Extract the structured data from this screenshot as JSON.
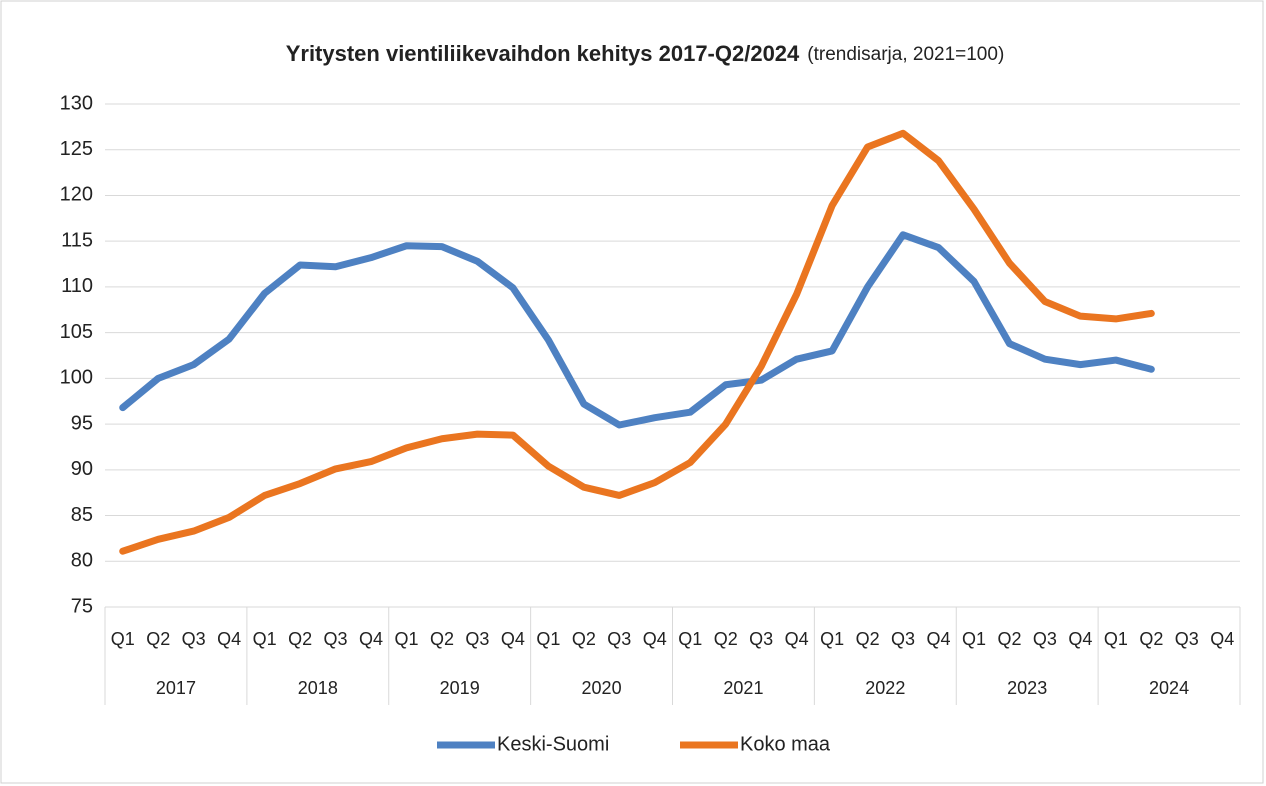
{
  "chart_data": {
    "type": "line",
    "title": "Yritysten vientiliikevaihdon kehitys 2017-Q2/2024",
    "subtitle": "(trendisarja, 2021=100)",
    "categories": [
      "Q1",
      "Q2",
      "Q3",
      "Q4",
      "Q1",
      "Q2",
      "Q3",
      "Q4",
      "Q1",
      "Q2",
      "Q3",
      "Q4",
      "Q1",
      "Q2",
      "Q3",
      "Q4",
      "Q1",
      "Q2",
      "Q3",
      "Q4",
      "Q1",
      "Q2",
      "Q3",
      "Q4",
      "Q1",
      "Q2",
      "Q3",
      "Q4",
      "Q1",
      "Q2",
      "Q3",
      "Q4"
    ],
    "groups": [
      "2017",
      "2018",
      "2019",
      "2020",
      "2021",
      "2022",
      "2023",
      "2024"
    ],
    "series": [
      {
        "name": "Keski-Suomi",
        "color": "#4e81c2",
        "values": [
          96.8,
          100.0,
          101.5,
          104.3,
          109.3,
          112.4,
          112.2,
          113.2,
          114.5,
          114.4,
          112.8,
          109.9,
          104.2,
          97.2,
          94.9,
          95.7,
          96.3,
          99.3,
          99.8,
          102.1,
          103.0,
          110.0,
          115.7,
          114.3,
          110.6,
          103.8,
          102.1,
          101.5,
          102.0,
          101.0,
          null,
          null
        ]
      },
      {
        "name": "Koko maa",
        "color": "#ea7520",
        "values": [
          81.1,
          82.4,
          83.3,
          84.8,
          87.2,
          88.5,
          90.1,
          90.9,
          92.4,
          93.4,
          93.9,
          93.8,
          90.4,
          88.1,
          87.2,
          88.6,
          90.8,
          95.0,
          101.3,
          109.2,
          118.9,
          125.3,
          126.8,
          123.8,
          118.5,
          112.6,
          108.4,
          106.8,
          106.5,
          107.1,
          null,
          null
        ]
      }
    ],
    "ylim": [
      75,
      130
    ],
    "yticks": [
      75,
      80,
      85,
      90,
      95,
      100,
      105,
      110,
      115,
      120,
      125,
      130
    ],
    "grid": true,
    "legend": "bottom"
  }
}
